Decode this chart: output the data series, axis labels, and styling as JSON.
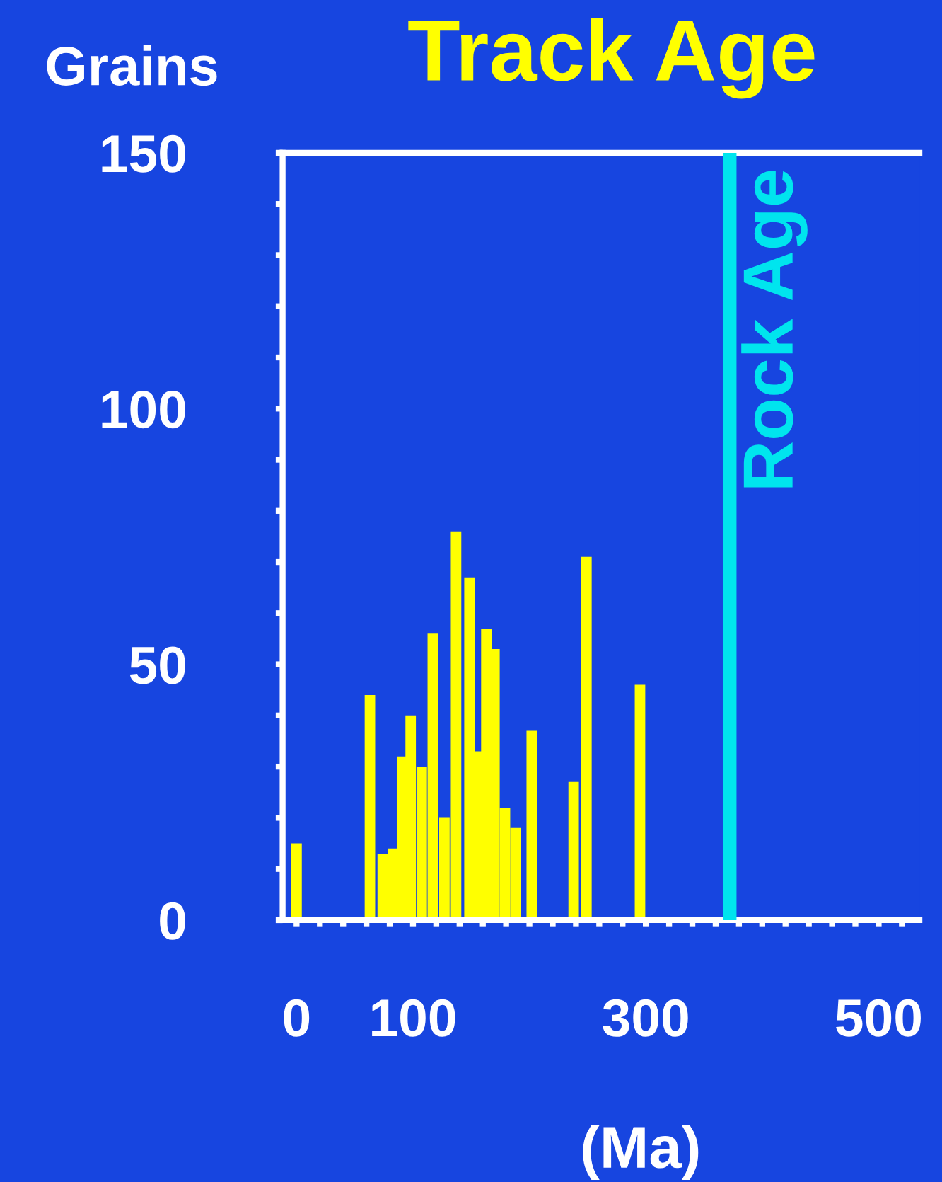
{
  "chart_data": {
    "type": "bar",
    "title": "Track Age",
    "ylabel": "Grains",
    "xlabel": "(Ma)",
    "x": [
      0,
      63,
      74,
      83,
      91,
      98,
      107.5,
      117,
      127,
      137,
      148.5,
      155,
      163,
      170,
      179,
      188,
      202,
      238,
      249,
      295
    ],
    "values": [
      15,
      44,
      13,
      14,
      32,
      40,
      30,
      56,
      20,
      76,
      67,
      33,
      57,
      53,
      22,
      18,
      37,
      27,
      71,
      46
    ],
    "color": "#ffff00",
    "xlim": [
      -12,
      535
    ],
    "ylim": [
      0,
      150
    ],
    "xticks": [
      0,
      {
        "value": 20,
        "label": null
      },
      {
        "value": 40,
        "label": null
      },
      {
        "value": 60,
        "label": null
      },
      {
        "value": 80,
        "label": null
      },
      100,
      {
        "value": 120,
        "label": null
      },
      {
        "value": 140,
        "label": null
      },
      {
        "value": 160,
        "label": null
      },
      {
        "value": 180,
        "label": null
      },
      {
        "value": 200,
        "label": null
      },
      {
        "value": 220,
        "label": null
      },
      {
        "value": 240,
        "label": null
      },
      {
        "value": 260,
        "label": null
      },
      {
        "value": 280,
        "label": null
      },
      300,
      {
        "value": 320,
        "label": null
      },
      {
        "value": 340,
        "label": null
      },
      {
        "value": 360,
        "label": null
      },
      {
        "value": 380,
        "label": null
      },
      {
        "value": 400,
        "label": null
      },
      {
        "value": 420,
        "label": null
      },
      {
        "value": 440,
        "label": null
      },
      {
        "value": 460,
        "label": null
      },
      {
        "value": 480,
        "label": null
      },
      500,
      {
        "value": 520,
        "label": null
      }
    ],
    "yticks": [
      0,
      {
        "value": 10,
        "label": null
      },
      {
        "value": 20,
        "label": null
      },
      {
        "value": 30,
        "label": null
      },
      {
        "value": 40,
        "label": null
      },
      50,
      {
        "value": 60,
        "label": null
      },
      {
        "value": 70,
        "label": null
      },
      {
        "value": 80,
        "label": null
      },
      {
        "value": 90,
        "label": null
      },
      100,
      {
        "value": 110,
        "label": null
      },
      {
        "value": 120,
        "label": null
      },
      {
        "value": 130,
        "label": null
      },
      {
        "value": 140,
        "label": null
      },
      150
    ],
    "ref_lines": [
      {
        "axis": "x",
        "value": 372,
        "label": "Rock Age",
        "color": "#00e5ee"
      }
    ],
    "grid": false,
    "legend": false
  }
}
